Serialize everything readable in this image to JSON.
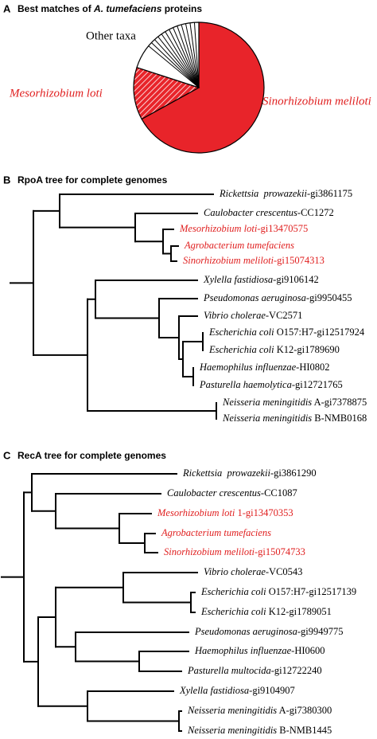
{
  "chart_data": {
    "type": "pie",
    "panel": "A",
    "title": [
      "Best matches of ",
      "A. tumefaciens",
      " proteins"
    ],
    "categories": [
      "Sinorhizobium meliloti",
      "Mesorhizobium loti",
      "Other taxa"
    ],
    "values": [
      67,
      13,
      20
    ],
    "colors": [
      "#e8242a",
      "#e8242a",
      "#ffffff"
    ],
    "label_colors": [
      "#e02020",
      "#e02020",
      "#000000"
    ]
  },
  "trees": [
    {
      "panel": "B",
      "title": "RpoA tree for complete genomes",
      "leaves": [
        {
          "species": "Rickettsia  prowazekii",
          "id": "-gi3861175"
        },
        {
          "species": "Caulobacter crescentus",
          "id": "-CC1272"
        },
        {
          "species": "Mesorhizobium loti",
          "id": "-gi13470575",
          "color": "#e02020"
        },
        {
          "species": "Agrobacterium tumefaciens",
          "color": "#e02020"
        },
        {
          "species": "Sinorhizobium meliloti",
          "id": "-gi15074313",
          "color": "#e02020"
        },
        {
          "species": "Xylella fastidiosa",
          "id": "-gi9106142"
        },
        {
          "species": "Pseudomonas aeruginosa",
          "id": "-gi9950455"
        },
        {
          "species": "Vibrio cholerae",
          "id": "-VC2571"
        },
        {
          "species": "Escherichia coli",
          "id": " O157:H7-gi12517924"
        },
        {
          "species": "Escherichia coli",
          "id": " K12-gi1789690"
        },
        {
          "species": "Haemophilus influenzae",
          "id": "-HI0802"
        },
        {
          "species": "Pasturella haemolytica",
          "id": "-gi12721765"
        },
        {
          "species": "Neisseria meningitidis",
          "id": " A-gi7378875"
        },
        {
          "species": "Neisseria meningitidis",
          "id": " B-NMB0168"
        }
      ]
    },
    {
      "panel": "C",
      "title": "RecA tree for complete genomes",
      "leaves": [
        {
          "species": "Rickettsia  prowazekii",
          "id": "-gi3861290"
        },
        {
          "species": "Caulobacter crescentus",
          "id": "-CC1087"
        },
        {
          "species": "Mesorhizobium loti",
          "id": " 1-gi13470353",
          "color": "#e02020"
        },
        {
          "species": "Agrobacterium tumefaciens",
          "color": "#e02020"
        },
        {
          "species": "Sinorhizobium meliloti",
          "id": "-gi15074733",
          "color": "#e02020"
        },
        {
          "species": "Vibrio cholerae",
          "id": "-VC0543"
        },
        {
          "species": "Escherichia coli",
          "id": " O157:H7-gi12517139"
        },
        {
          "species": "Escherichia coli",
          "id": " K12-gi1789051"
        },
        {
          "species": "Pseudomonas aeruginosa",
          "id": "-gi9949775"
        },
        {
          "species": "Haemophilus influenzae",
          "id": "-HI0600"
        },
        {
          "species": "Pasturella multocida",
          "id": "-gi12722240"
        },
        {
          "species": "Xylella fastidiosa",
          "id": "-gi9104907"
        },
        {
          "species": "Neisseria meningitidis",
          "id": " A-gi7380300"
        },
        {
          "species": "Neisseria meningitidis",
          "id": " B-NMB1445"
        }
      ]
    }
  ]
}
